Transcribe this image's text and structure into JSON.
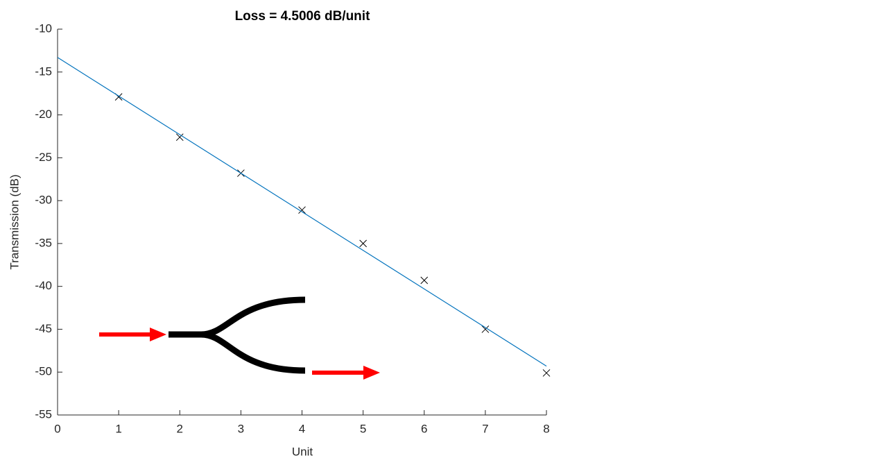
{
  "chart_data": {
    "type": "scatter",
    "title": "Loss = 4.5006 dB/unit",
    "x_label": "Unit",
    "y_label": "Transmission (dB)",
    "series": [
      {
        "style": "markers",
        "color": "#000000",
        "x": [
          1,
          2,
          3,
          4,
          5,
          6,
          7,
          8
        ],
        "values": [
          -17.9,
          -22.6,
          -26.8,
          -31.1,
          -35.0,
          -39.3,
          -45.0,
          -50.1
        ]
      },
      {
        "style": "line",
        "color": "#0072bd",
        "x": [
          0,
          8
        ],
        "values": [
          -13.3,
          -49.3
        ]
      }
    ],
    "xlim": [
      0,
      8
    ],
    "xticks": [
      0,
      1,
      2,
      3,
      4,
      5,
      6,
      7,
      8
    ],
    "ylim": [
      -55,
      -10
    ],
    "yticks": [
      -55,
      -50,
      -45,
      -40,
      -35,
      -30,
      -25,
      -20,
      -15,
      -10
    ],
    "grid": false
  }
}
